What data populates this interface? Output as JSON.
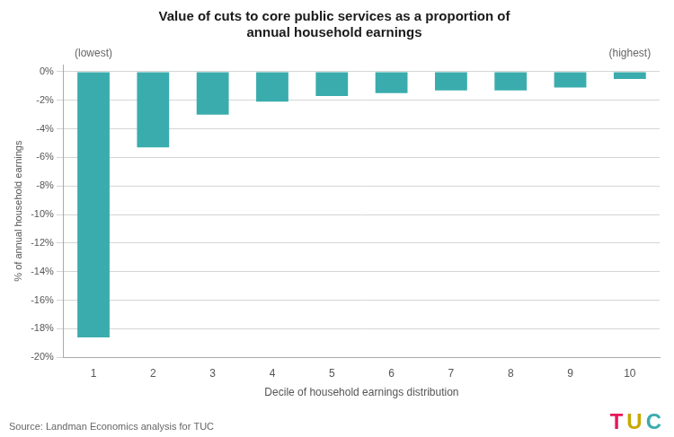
{
  "chart_data": {
    "type": "bar",
    "title": [
      "Value of cuts to core public services as a proportion of",
      "annual household earnings"
    ],
    "x_label": "Decile of household earnings distribution",
    "y_label": "% of annual household earnings",
    "categories": [
      "1",
      "2",
      "3",
      "4",
      "5",
      "6",
      "7",
      "8",
      "9",
      "10"
    ],
    "values": [
      -18.6,
      -5.3,
      -3.0,
      -2.1,
      -1.7,
      -1.5,
      -1.3,
      -1.3,
      -1.1,
      -0.5
    ],
    "color": "#3aacad",
    "ylim": [
      -20,
      0.5
    ],
    "yticks": [
      {
        "value": 0,
        "label": "0%"
      },
      {
        "value": -2,
        "label": "-2%"
      },
      {
        "value": -4,
        "label": "-4%"
      },
      {
        "value": -6,
        "label": "-6%"
      },
      {
        "value": -8,
        "label": "-8%"
      },
      {
        "value": -10,
        "label": "-10%"
      },
      {
        "value": -12,
        "label": "-12%"
      },
      {
        "value": -14,
        "label": "-14%"
      },
      {
        "value": -16,
        "label": "-16%"
      },
      {
        "value": -18,
        "label": "-18%"
      },
      {
        "value": -20,
        "label": "-20%"
      }
    ],
    "grid": true,
    "annotations": [
      {
        "text": "(lowest)",
        "x": "1"
      },
      {
        "text": "(highest)",
        "x": "10"
      },
      {
        "text": "Source: Landman Economics analysis for TUC"
      },
      {
        "text": "T",
        "color": "#e8185a"
      },
      {
        "text": "U",
        "color": "#c8a800"
      },
      {
        "text": "C",
        "color": "#3aacad"
      }
    ]
  }
}
